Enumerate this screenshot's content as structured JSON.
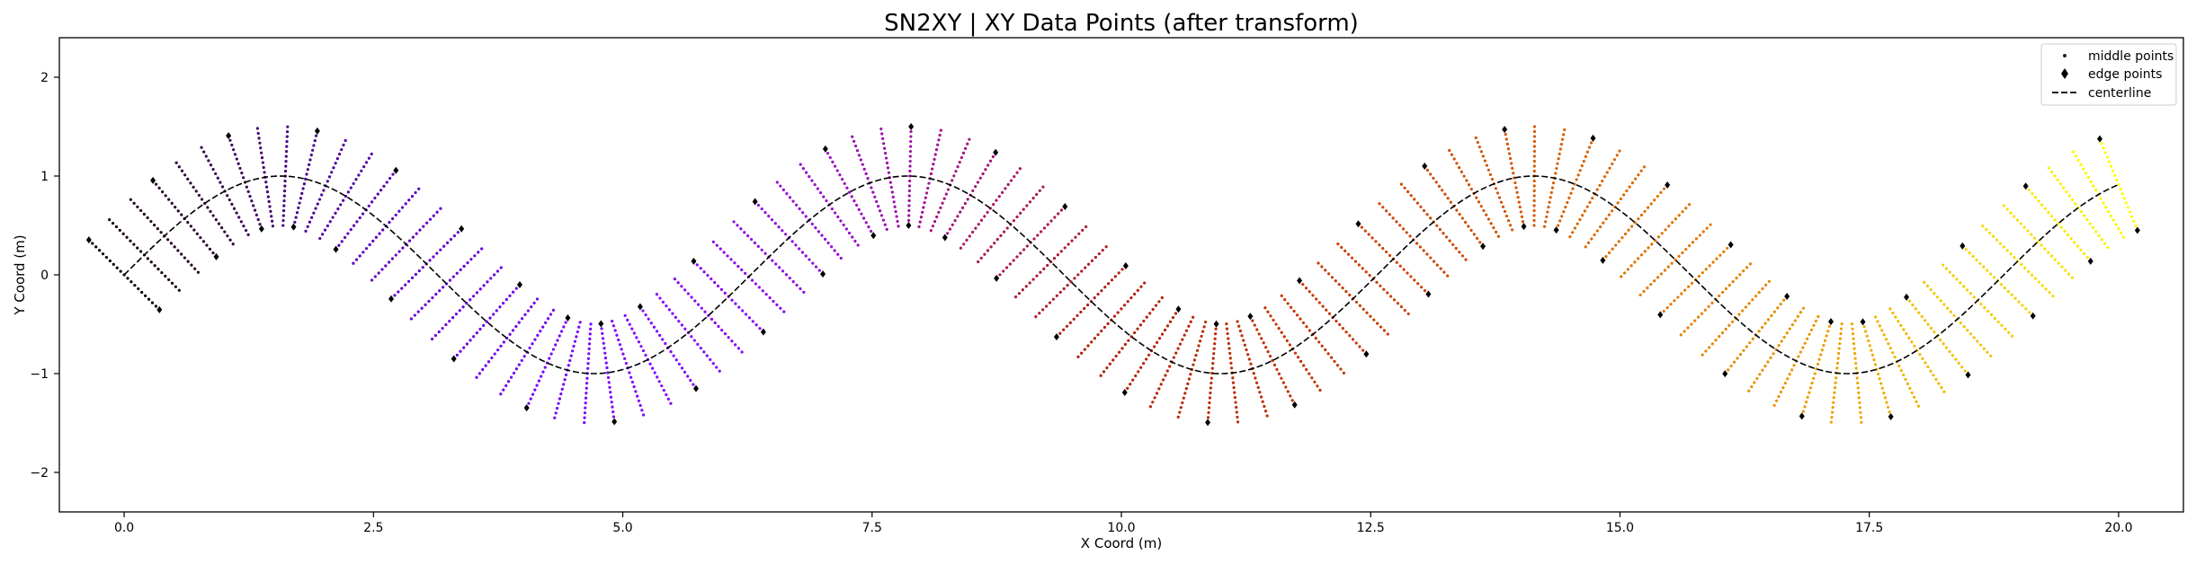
{
  "chart_data": {
    "type": "scatter",
    "title": "SN2XY | XY Data Points (after transform)",
    "xlabel": "X Coord (m)",
    "ylabel": "Y Coord (m)",
    "xlim": [
      -0.65,
      20.65
    ],
    "ylim": [
      -2.4,
      2.4
    ],
    "xticks": [
      0.0,
      2.5,
      5.0,
      7.5,
      10.0,
      12.5,
      15.0,
      17.5,
      20.0
    ],
    "xtick_labels": [
      "0.0",
      "2.5",
      "5.0",
      "7.5",
      "10.0",
      "12.5",
      "15.0",
      "17.5",
      "20.0"
    ],
    "yticks": [
      2,
      1,
      0,
      -1,
      -2
    ],
    "ytick_labels": [
      "2",
      "1",
      "0",
      "−1",
      "−2"
    ],
    "grid": false,
    "legend_position": "top-right",
    "centerline": {
      "name": "centerline",
      "function": "y = sin(x)",
      "x_range": [
        0,
        20
      ],
      "color": "#000000",
      "style": "dashed"
    },
    "cross_sections": {
      "count": 100,
      "s_range": [
        0,
        20
      ],
      "n_range": [
        -0.5,
        0.5
      ],
      "points_per_section": 21,
      "colormap": "gnuplot"
    },
    "series": [
      {
        "name": "middle points",
        "marker": "small dot",
        "description": "points across each cross-section, colored by station"
      },
      {
        "name": "edge points",
        "marker": "diamond",
        "color": "#000000"
      },
      {
        "name": "centerline",
        "marker": "dashed line",
        "color": "#000000"
      }
    ],
    "legend": [
      {
        "label": "middle points",
        "marker": "dot"
      },
      {
        "label": "edge points",
        "marker": "diamond"
      },
      {
        "label": "centerline",
        "marker": "dash"
      }
    ]
  }
}
